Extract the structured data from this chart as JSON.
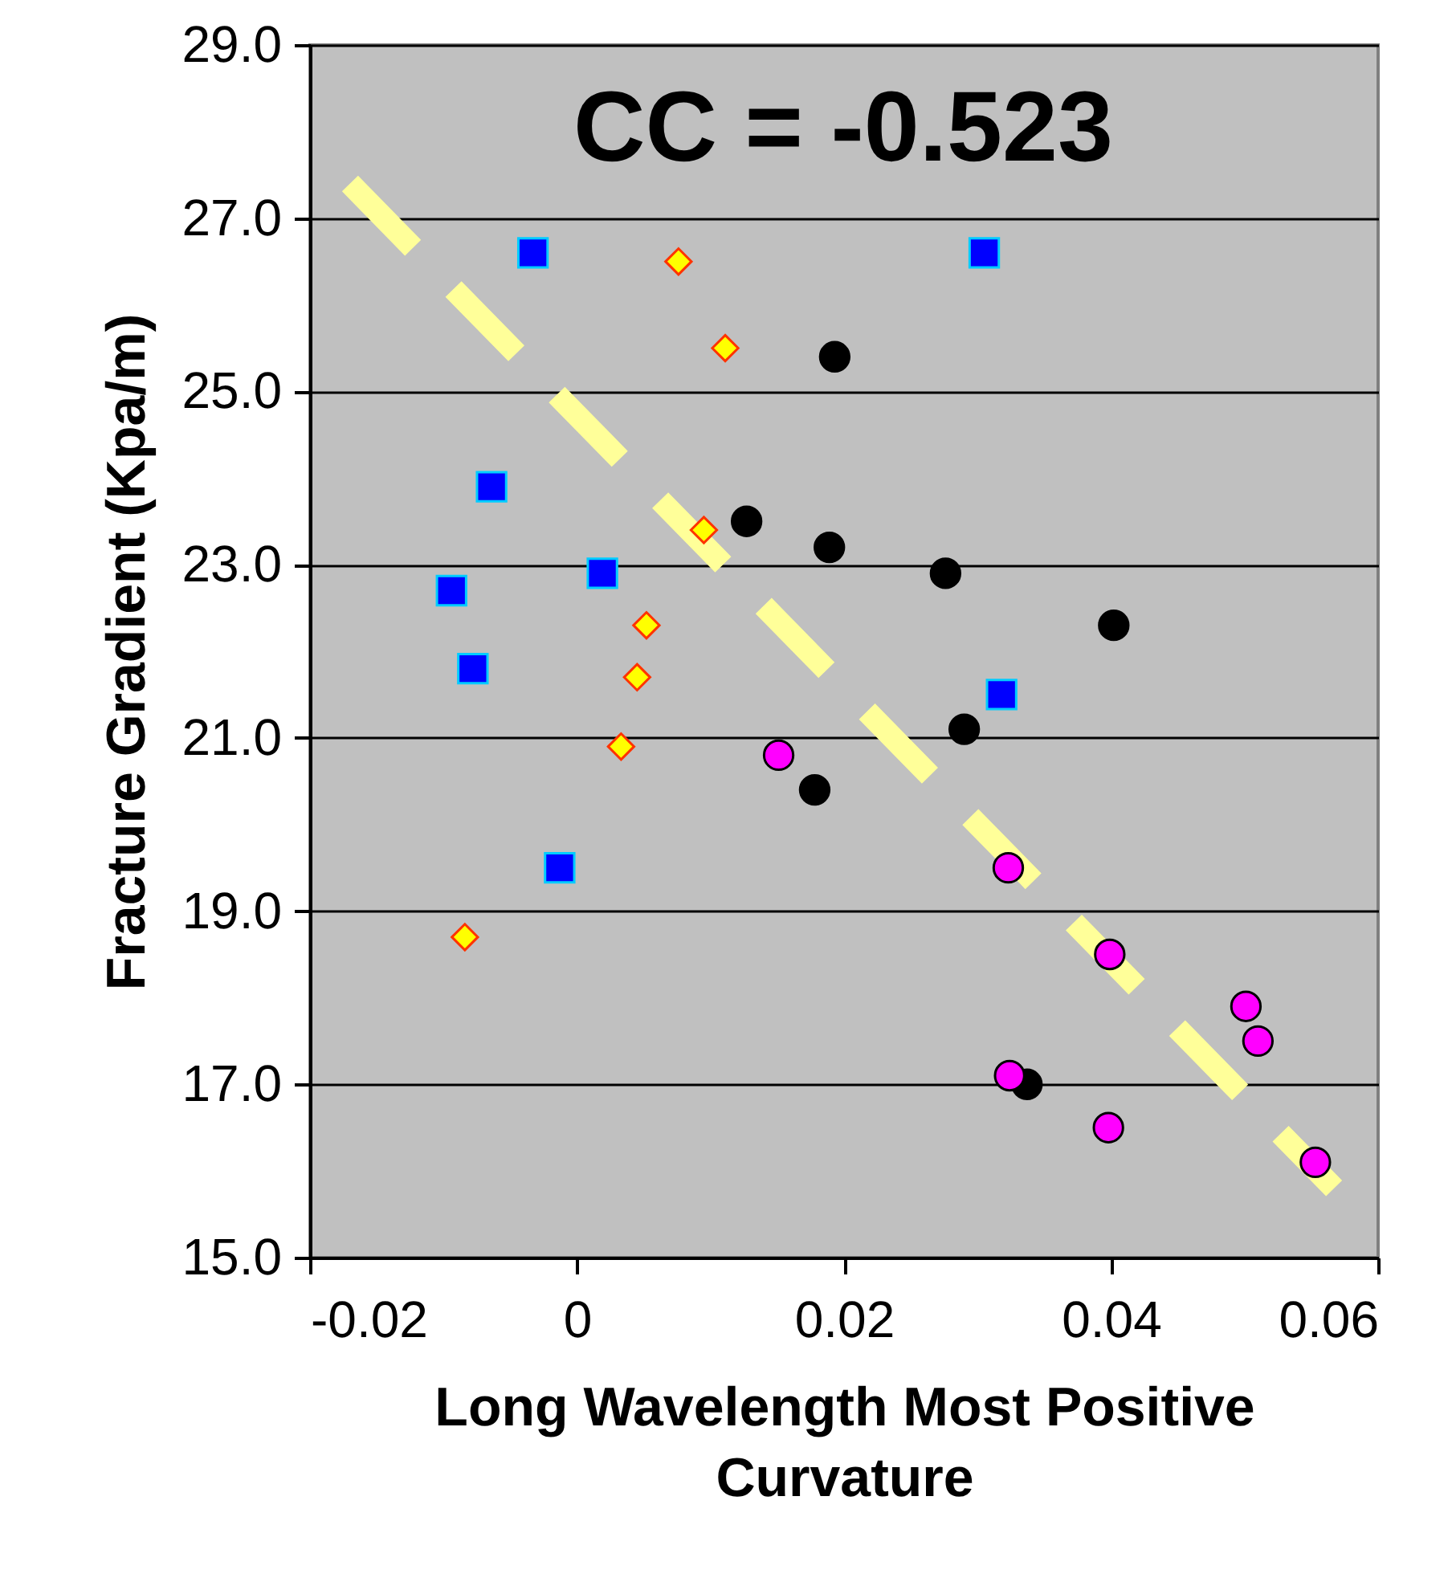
{
  "chart_data": {
    "type": "scatter",
    "title": "CC = -0.523",
    "xlabel": "Long Wavelength Most Positive Curvature",
    "ylabel": "Fracture Gradient (Kpa/m)",
    "xlim": [
      -0.02,
      0.06
    ],
    "xticks": [
      -0.02,
      0,
      0.02,
      0.04,
      0.06
    ],
    "ylim": [
      15,
      29
    ],
    "yticks": [
      {
        "value": 15,
        "label": "15.0"
      },
      {
        "value": 17,
        "label": "17.0"
      },
      {
        "value": 19,
        "label": "19.0"
      },
      {
        "value": 21,
        "label": "21.0"
      },
      {
        "value": 23,
        "label": "23.0"
      },
      {
        "value": 25,
        "label": "25.0"
      },
      {
        "value": 27,
        "label": "27.0"
      },
      {
        "value": 29,
        "label": "29.0"
      }
    ],
    "grid": "y",
    "series": [
      {
        "color": "#0000ff",
        "marker": "square",
        "x": [
          -0.0033,
          0.0305,
          -0.0064,
          0.0019,
          -0.0094,
          -0.0078,
          0.0318,
          -0.0013
        ],
        "values": [
          26.6,
          26.6,
          23.9,
          22.9,
          22.7,
          21.8,
          21.5,
          19.5
        ]
      },
      {
        "color": "#ffff00",
        "marker": "diamond",
        "x": [
          0.0076,
          0.0111,
          0.0095,
          0.0052,
          0.0045,
          0.0033,
          -0.0084
        ],
        "values": [
          26.5,
          25.5,
          23.4,
          22.3,
          21.7,
          20.9,
          18.7
        ]
      },
      {
        "color": "#000000",
        "marker": "circle",
        "x": [
          0.0193,
          0.0127,
          0.0189,
          0.0276,
          0.0402,
          0.029,
          0.0178,
          0.0337
        ],
        "values": [
          25.4,
          23.5,
          23.2,
          22.9,
          22.3,
          21.1,
          20.4,
          17.0
        ]
      },
      {
        "color": "#ff00ff",
        "marker": "circle",
        "x": [
          0.0151,
          0.0323,
          0.0399,
          0.0501,
          0.051,
          0.0324,
          0.0398,
          0.0553
        ],
        "values": [
          20.8,
          19.5,
          18.5,
          17.9,
          17.5,
          17.1,
          16.5,
          16.1
        ]
      },
      {
        "type": "line",
        "color": "#ffff99",
        "line_style": "dashed",
        "x": [
          -0.017,
          0.0567
        ],
        "values": [
          27.4,
          15.8
        ]
      }
    ]
  }
}
